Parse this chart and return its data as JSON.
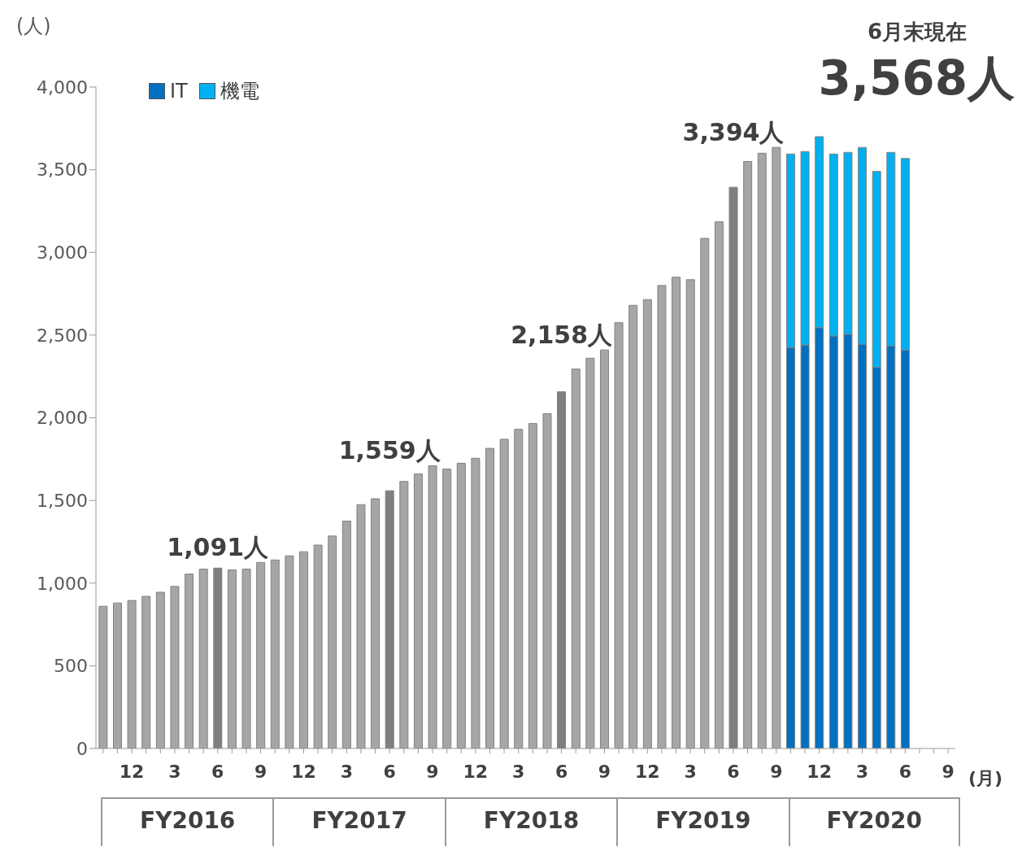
{
  "chart_data": {
    "type": "bar",
    "stacked": true,
    "ylabel": "(人)",
    "xlabel": "(月)",
    "categories": [
      null,
      null,
      "12",
      null,
      null,
      "3",
      null,
      null,
      "6",
      null,
      null,
      "9",
      null,
      null,
      "12",
      null,
      null,
      "3",
      null,
      null,
      "6",
      null,
      null,
      "9",
      null,
      null,
      "12",
      null,
      null,
      "3",
      null,
      null,
      "6",
      null,
      null,
      "9",
      null,
      null,
      "12",
      null,
      null,
      "3",
      null,
      null,
      "6",
      null,
      null,
      "9",
      null,
      null,
      "12",
      null,
      null,
      "3",
      null,
      null,
      "6",
      null,
      null,
      "9"
    ],
    "series": [
      {
        "color": "#a6a6a6",
        "colors": [
          "#a6a6a6",
          "#a6a6a6",
          "#a6a6a6",
          "#a6a6a6",
          "#a6a6a6",
          "#a6a6a6",
          "#a6a6a6",
          "#a6a6a6",
          "#7f7f7f",
          "#a6a6a6",
          "#a6a6a6",
          "#a6a6a6",
          "#a6a6a6",
          "#a6a6a6",
          "#a6a6a6",
          "#a6a6a6",
          "#a6a6a6",
          "#a6a6a6",
          "#a6a6a6",
          "#a6a6a6",
          "#7f7f7f",
          "#a6a6a6",
          "#a6a6a6",
          "#a6a6a6",
          "#a6a6a6",
          "#a6a6a6",
          "#a6a6a6",
          "#a6a6a6",
          "#a6a6a6",
          "#a6a6a6",
          "#a6a6a6",
          "#a6a6a6",
          "#7f7f7f",
          "#a6a6a6",
          "#a6a6a6",
          "#a6a6a6",
          "#a6a6a6",
          "#a6a6a6",
          "#a6a6a6",
          "#a6a6a6",
          "#a6a6a6",
          "#a6a6a6",
          "#a6a6a6",
          "#a6a6a6",
          "#7f7f7f",
          "#a6a6a6",
          "#a6a6a6",
          "#a6a6a6",
          null,
          null,
          null,
          null,
          null,
          null,
          null,
          null,
          null,
          null,
          null,
          null
        ],
        "values": [
          860,
          880,
          895,
          920,
          945,
          980,
          1055,
          1085,
          1091,
          1080,
          1085,
          1125,
          1140,
          1165,
          1190,
          1230,
          1285,
          1375,
          1475,
          1510,
          1559,
          1615,
          1660,
          1710,
          1690,
          1725,
          1755,
          1815,
          1870,
          1930,
          1965,
          2025,
          2158,
          2295,
          2360,
          2410,
          2575,
          2680,
          2715,
          2800,
          2850,
          2835,
          3085,
          3185,
          3394,
          3550,
          3600,
          3635,
          null,
          null,
          null,
          null,
          null,
          null,
          null,
          null,
          null,
          null,
          null,
          null
        ],
        "value_labels": [
          null,
          null,
          null,
          null,
          null,
          null,
          null,
          null,
          "1,091人",
          null,
          null,
          null,
          null,
          null,
          null,
          null,
          null,
          null,
          null,
          null,
          "1,559人",
          null,
          null,
          null,
          null,
          null,
          null,
          null,
          null,
          null,
          null,
          null,
          "2,158人",
          null,
          null,
          null,
          null,
          null,
          null,
          null,
          null,
          null,
          null,
          null,
          "3,394人",
          null,
          null,
          null,
          null,
          null,
          null,
          null,
          null,
          null,
          null,
          null,
          null,
          null,
          null,
          null
        ]
      },
      {
        "name": "IT",
        "color": "#0070c0",
        "values": [
          null,
          null,
          null,
          null,
          null,
          null,
          null,
          null,
          null,
          null,
          null,
          null,
          null,
          null,
          null,
          null,
          null,
          null,
          null,
          null,
          null,
          null,
          null,
          null,
          null,
          null,
          null,
          null,
          null,
          null,
          null,
          null,
          null,
          null,
          null,
          null,
          null,
          null,
          null,
          null,
          null,
          null,
          null,
          null,
          null,
          null,
          null,
          null,
          2425,
          2440,
          2545,
          2495,
          2505,
          2445,
          2305,
          2435,
          2410,
          null,
          null,
          null
        ]
      },
      {
        "name": "機電",
        "color": "#00b0f0",
        "values": [
          null,
          null,
          null,
          null,
          null,
          null,
          null,
          null,
          null,
          null,
          null,
          null,
          null,
          null,
          null,
          null,
          null,
          null,
          null,
          null,
          null,
          null,
          null,
          null,
          null,
          null,
          null,
          null,
          null,
          null,
          null,
          null,
          null,
          null,
          null,
          null,
          null,
          null,
          null,
          null,
          null,
          null,
          null,
          null,
          null,
          null,
          null,
          null,
          1170,
          1170,
          1155,
          1100,
          1100,
          1190,
          1185,
          1170,
          1158,
          null,
          null,
          null
        ]
      }
    ],
    "ylim": [
      0,
      4000
    ],
    "yticks": [
      {
        "value": 0,
        "label": "0"
      },
      {
        "value": 500,
        "label": "500"
      },
      {
        "value": 1000,
        "label": "1,000"
      },
      {
        "value": 1500,
        "label": "1,500"
      },
      {
        "value": 2000,
        "label": "2,000"
      },
      {
        "value": 2500,
        "label": "2,500"
      },
      {
        "value": 3000,
        "label": "3,000"
      },
      {
        "value": 3500,
        "label": "3,500"
      },
      {
        "value": 4000,
        "label": "4,000"
      }
    ],
    "grid": false,
    "legend": "top left",
    "annotations": [
      "FY2016",
      "FY2017",
      "FY2018",
      "FY2019",
      "FY2020",
      "6月末現在",
      "3,568人"
    ]
  }
}
